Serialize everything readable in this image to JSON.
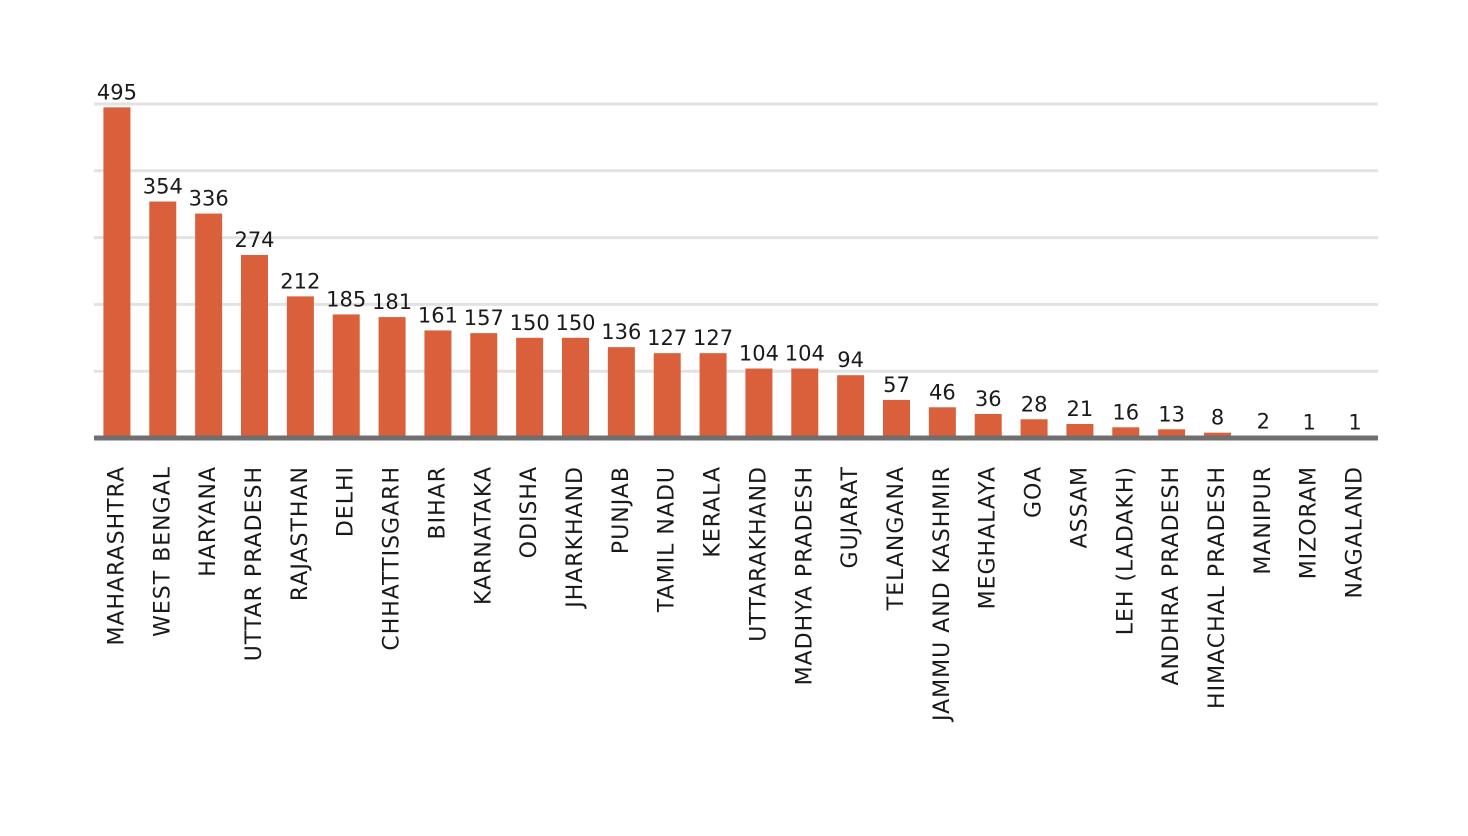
{
  "chart_data": {
    "type": "bar",
    "title": "",
    "xlabel": "",
    "ylabel": "",
    "ylim": [
      0,
      500
    ],
    "grid": true,
    "legend": "none",
    "bar_color": "#d9603b",
    "gridline_color": "#e2e2e2",
    "axis_color": "#6f6f6f",
    "categories": [
      "MAHARASHTRA",
      "WEST BENGAL",
      "HARYANA",
      "UTTAR PRADESH",
      "RAJASTHAN",
      "DELHI",
      "CHHATTISGARH",
      "BIHAR",
      "KARNATAKA",
      "ODISHA",
      "JHARKHAND",
      "PUNJAB",
      "TAMIL NADU",
      "KERALA",
      "UTTARAKHAND",
      "MADHYA PRADESH",
      "GUJARAT",
      "TELANGANA",
      "JAMMU AND KASHMIR",
      "MEGHALAYA",
      "GOA",
      "ASSAM",
      "LEH (LADAKH)",
      "ANDHRA PRADESH",
      "HIMACHAL PRADESH",
      "MANIPUR",
      "MIZORAM",
      "NAGALAND"
    ],
    "values": [
      495,
      354,
      336,
      274,
      212,
      185,
      181,
      161,
      157,
      150,
      150,
      136,
      127,
      127,
      104,
      104,
      94,
      57,
      46,
      36,
      28,
      21,
      16,
      13,
      8,
      2,
      1,
      1
    ]
  }
}
